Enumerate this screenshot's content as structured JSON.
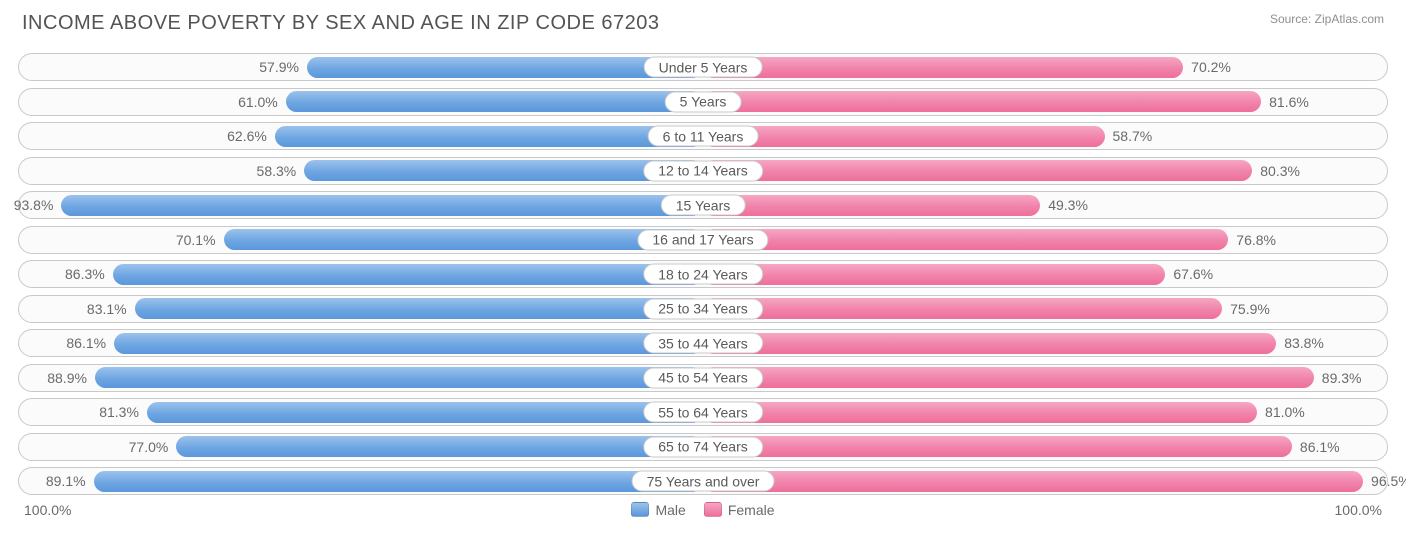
{
  "title": "INCOME ABOVE POVERTY BY SEX AND AGE IN ZIP CODE 67203",
  "source": "Source: ZipAtlas.com",
  "chart": {
    "type": "diverging-bar",
    "axis_max": 100.0,
    "axis_left_label": "100.0%",
    "axis_right_label": "100.0%",
    "background_color": "#ffffff",
    "row_border_color": "#c9c9c9",
    "row_bg_color": "#fbfbfb",
    "title_color": "#545454",
    "text_color": "#6a6a6a",
    "title_fontsize": 20,
    "label_fontsize": 14,
    "source_fontsize": 12,
    "male_gradient": [
      "#9cc2ec",
      "#6ea6e2",
      "#5b97db"
    ],
    "female_gradient": [
      "#f6a6c4",
      "#f183ab",
      "#ee6f9b"
    ],
    "legend": {
      "male": "Male",
      "female": "Female"
    },
    "rows": [
      {
        "category": "Under 5 Years",
        "male": 57.9,
        "female": 70.2,
        "male_label": "57.9%",
        "female_label": "70.2%"
      },
      {
        "category": "5 Years",
        "male": 61.0,
        "female": 81.6,
        "male_label": "61.0%",
        "female_label": "81.6%"
      },
      {
        "category": "6 to 11 Years",
        "male": 62.6,
        "female": 58.7,
        "male_label": "62.6%",
        "female_label": "58.7%"
      },
      {
        "category": "12 to 14 Years",
        "male": 58.3,
        "female": 80.3,
        "male_label": "58.3%",
        "female_label": "80.3%"
      },
      {
        "category": "15 Years",
        "male": 93.8,
        "female": 49.3,
        "male_label": "93.8%",
        "female_label": "49.3%"
      },
      {
        "category": "16 and 17 Years",
        "male": 70.1,
        "female": 76.8,
        "male_label": "70.1%",
        "female_label": "76.8%"
      },
      {
        "category": "18 to 24 Years",
        "male": 86.3,
        "female": 67.6,
        "male_label": "86.3%",
        "female_label": "67.6%"
      },
      {
        "category": "25 to 34 Years",
        "male": 83.1,
        "female": 75.9,
        "male_label": "83.1%",
        "female_label": "75.9%"
      },
      {
        "category": "35 to 44 Years",
        "male": 86.1,
        "female": 83.8,
        "male_label": "86.1%",
        "female_label": "83.8%"
      },
      {
        "category": "45 to 54 Years",
        "male": 88.9,
        "female": 89.3,
        "male_label": "88.9%",
        "female_label": "89.3%"
      },
      {
        "category": "55 to 64 Years",
        "male": 81.3,
        "female": 81.0,
        "male_label": "81.3%",
        "female_label": "81.0%"
      },
      {
        "category": "65 to 74 Years",
        "male": 77.0,
        "female": 86.1,
        "male_label": "77.0%",
        "female_label": "86.1%"
      },
      {
        "category": "75 Years and over",
        "male": 89.1,
        "female": 96.5,
        "male_label": "89.1%",
        "female_label": "96.5%"
      }
    ]
  }
}
